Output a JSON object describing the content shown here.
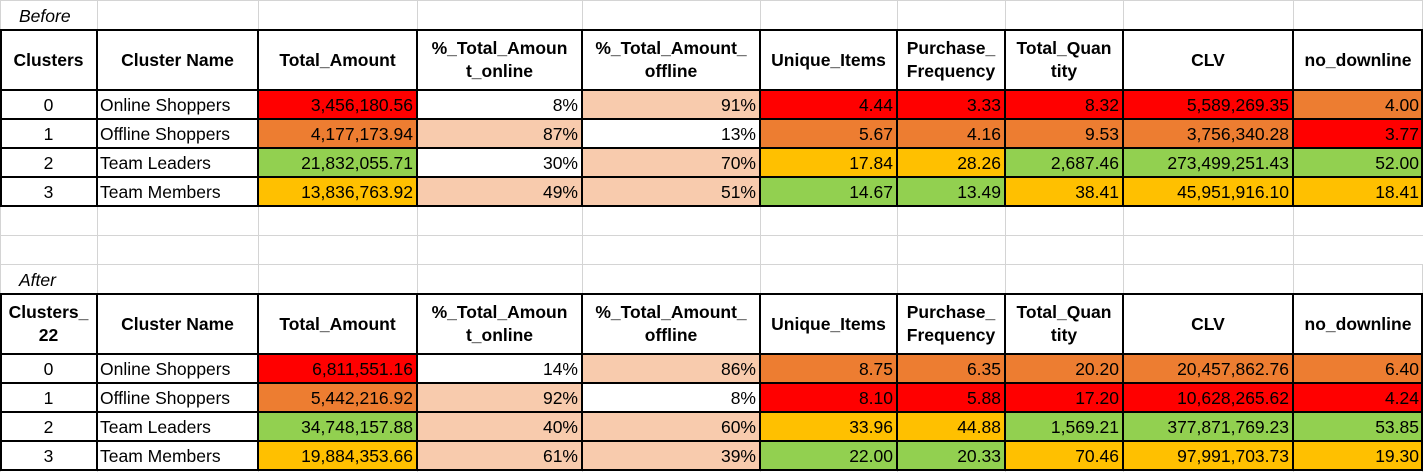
{
  "colors": {
    "red": "#ff0000",
    "orange": "#ed7d31",
    "yellow": "#ffc000",
    "green": "#92d050",
    "peach": "#f8cbad",
    "white": "#ffffff",
    "gridline": "#d4d4d4",
    "border": "#000000"
  },
  "before": {
    "label": "Before",
    "headers": [
      [
        "Clusters"
      ],
      [
        "Cluster Name"
      ],
      [
        "Total_Amount"
      ],
      [
        "%_Total_Amoun",
        "t_online"
      ],
      [
        "%_Total_Amount_",
        "offline"
      ],
      [
        "Unique_Items"
      ],
      [
        "Purchase_",
        "Frequency"
      ],
      [
        "Total_Quan",
        "tity"
      ],
      [
        "CLV"
      ],
      [
        "no_downline"
      ]
    ],
    "rows": [
      {
        "cells": [
          "0",
          "Online Shoppers",
          "3,456,180.56",
          "8%",
          "91%",
          "4.44",
          "3.33",
          "8.32",
          "5,589,269.35",
          "4.00"
        ],
        "fills": [
          "white",
          "white",
          "red",
          "white",
          "peach",
          "red",
          "red",
          "red",
          "red",
          "orange"
        ]
      },
      {
        "cells": [
          "1",
          "Offline Shoppers",
          "4,177,173.94",
          "87%",
          "13%",
          "5.67",
          "4.16",
          "9.53",
          "3,756,340.28",
          "3.77"
        ],
        "fills": [
          "white",
          "white",
          "orange",
          "peach",
          "white",
          "orange",
          "orange",
          "orange",
          "orange",
          "red"
        ]
      },
      {
        "cells": [
          "2",
          "Team Leaders",
          "21,832,055.71",
          "30%",
          "70%",
          "17.84",
          "28.26",
          "2,687.46",
          "273,499,251.43",
          "52.00"
        ],
        "fills": [
          "white",
          "white",
          "green",
          "white",
          "peach",
          "yellow",
          "yellow",
          "green",
          "green",
          "green"
        ]
      },
      {
        "cells": [
          "3",
          "Team Members",
          "13,836,763.92",
          "49%",
          "51%",
          "14.67",
          "13.49",
          "38.41",
          "45,951,916.10",
          "18.41"
        ],
        "fills": [
          "white",
          "white",
          "yellow",
          "peach",
          "peach",
          "green",
          "green",
          "yellow",
          "yellow",
          "yellow"
        ]
      }
    ]
  },
  "after": {
    "label": "After",
    "headers": [
      [
        "Clusters_",
        "22"
      ],
      [
        "Cluster Name"
      ],
      [
        "Total_Amount"
      ],
      [
        "%_Total_Amoun",
        "t_online"
      ],
      [
        "%_Total_Amount_",
        "offline"
      ],
      [
        "Unique_Items"
      ],
      [
        "Purchase_",
        "Frequency"
      ],
      [
        "Total_Quan",
        "tity"
      ],
      [
        "CLV"
      ],
      [
        "no_downline"
      ]
    ],
    "rows": [
      {
        "cells": [
          "0",
          "Online Shoppers",
          "6,811,551.16",
          "14%",
          "86%",
          "8.75",
          "6.35",
          "20.20",
          "20,457,862.76",
          "6.40"
        ],
        "fills": [
          "white",
          "white",
          "red",
          "white",
          "peach",
          "orange",
          "orange",
          "orange",
          "orange",
          "orange"
        ]
      },
      {
        "cells": [
          "1",
          "Offline Shoppers",
          "5,442,216.92",
          "92%",
          "8%",
          "8.10",
          "5.88",
          "17.20",
          "10,628,265.62",
          "4.24"
        ],
        "fills": [
          "white",
          "white",
          "orange",
          "peach",
          "white",
          "red",
          "red",
          "red",
          "red",
          "red"
        ]
      },
      {
        "cells": [
          "2",
          "Team Leaders",
          "34,748,157.88",
          "40%",
          "60%",
          "33.96",
          "44.88",
          "1,569.21",
          "377,871,769.23",
          "53.85"
        ],
        "fills": [
          "white",
          "white",
          "green",
          "peach",
          "peach",
          "yellow",
          "yellow",
          "green",
          "green",
          "green"
        ]
      },
      {
        "cells": [
          "3",
          "Team Members",
          "19,884,353.66",
          "61%",
          "39%",
          "22.00",
          "20.33",
          "70.46",
          "97,991,703.73",
          "19.30"
        ],
        "fills": [
          "white",
          "white",
          "yellow",
          "peach",
          "peach",
          "green",
          "green",
          "yellow",
          "yellow",
          "yellow"
        ]
      }
    ]
  }
}
